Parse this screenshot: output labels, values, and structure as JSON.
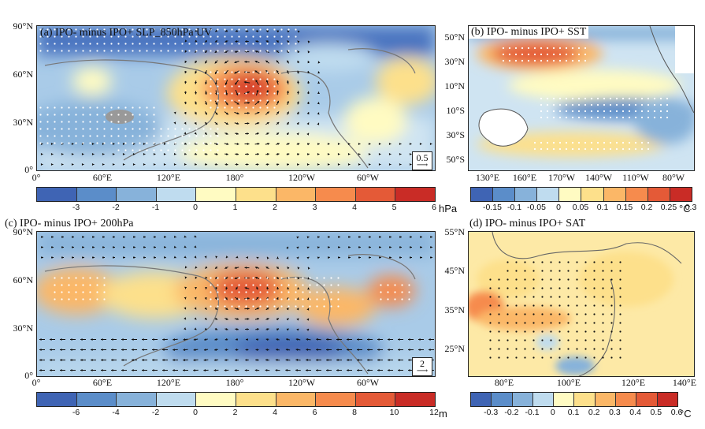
{
  "panels": [
    {
      "id": "a",
      "title": "(a) IPO- minus IPO+ SLP_850hPa UV",
      "y_ticks": [
        "90°N",
        "60°N",
        "30°N",
        "0°"
      ],
      "x_ticks": [
        "0°",
        "60°E",
        "120°E",
        "180°",
        "120°W",
        "60°W"
      ],
      "colorbar_labels": [
        "-3",
        "-2",
        "-1",
        "0",
        "1",
        "2",
        "3",
        "4",
        "5",
        "6"
      ],
      "colorbar_unit": "hPa",
      "ref_vector": "0.5"
    },
    {
      "id": "b",
      "title": "(b) IPO- minus IPO+ SST",
      "y_ticks": [
        "50°N",
        "30°N",
        "10°N",
        "10°S",
        "30°S",
        "50°S"
      ],
      "x_ticks": [
        "130°E",
        "160°E",
        "170°W",
        "140°W",
        "110°W",
        "80°W"
      ],
      "colorbar_labels": [
        "-0.15",
        "-0.1",
        "-0.05",
        "0",
        "0.05",
        "0.1",
        "0.15",
        "0.2",
        "0.25",
        "0.3"
      ],
      "colorbar_unit": "°C"
    },
    {
      "id": "c",
      "title": "(c) IPO- minus IPO+ 200hPa",
      "y_ticks": [
        "90°N",
        "60°N",
        "30°N",
        "0°"
      ],
      "x_ticks": [
        "0°",
        "60°E",
        "120°E",
        "180°",
        "120°W",
        "60°W"
      ],
      "colorbar_labels": [
        "-6",
        "-4",
        "-2",
        "0",
        "2",
        "4",
        "6",
        "8",
        "10",
        "12"
      ],
      "colorbar_unit": "m",
      "ref_vector": "2"
    },
    {
      "id": "d",
      "title": "(d) IPO- minus IPO+ SAT",
      "y_ticks": [
        "55°N",
        "45°N",
        "35°N",
        "25°N"
      ],
      "x_ticks": [
        "80°E",
        "100°E",
        "120°E",
        "140°E"
      ],
      "colorbar_labels": [
        "-0.3",
        "-0.2",
        "-0.1",
        "0",
        "0.1",
        "0.2",
        "0.3",
        "0.4",
        "0.5",
        "0.6"
      ],
      "colorbar_unit": "°C"
    }
  ],
  "colors": {
    "palette": [
      "#3f64b4",
      "#5b8dc9",
      "#87b2da",
      "#bfdcef",
      "#fffbc2",
      "#fde08b",
      "#fbb767",
      "#f68b4d",
      "#e45a37",
      "#c92c26"
    ]
  },
  "chart_data": [
    {
      "type": "heatmap",
      "panel": "a",
      "variable": "SLP difference with 850hPa wind vectors",
      "ylim": [
        0,
        90
      ],
      "colorbar_range": [
        -3,
        6
      ],
      "unit": "hPa"
    },
    {
      "type": "heatmap",
      "panel": "b",
      "variable": "SST difference",
      "ylim": [
        -55,
        55
      ],
      "colorbar_range": [
        -0.15,
        0.3
      ],
      "unit": "°C"
    },
    {
      "type": "heatmap",
      "panel": "c",
      "variable": "200hPa geopotential height difference with wind vectors",
      "ylim": [
        0,
        90
      ],
      "colorbar_range": [
        -6,
        12
      ],
      "unit": "m"
    },
    {
      "type": "heatmap",
      "panel": "d",
      "variable": "SAT difference over China",
      "ylim": [
        18,
        55
      ],
      "xlim": [
        70,
        140
      ],
      "colorbar_range": [
        -0.3,
        0.6
      ],
      "unit": "°C"
    }
  ]
}
